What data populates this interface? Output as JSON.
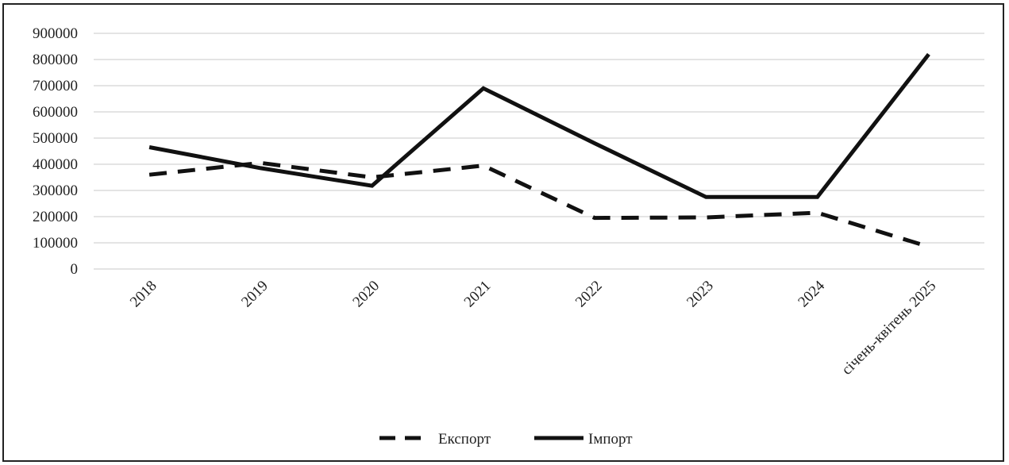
{
  "chart_data": {
    "type": "line",
    "categories": [
      "2018",
      "2019",
      "2020",
      "2021",
      "2022",
      "2023",
      "2024",
      "січень-квітень 2025"
    ],
    "series": [
      {
        "name": "Експорт",
        "style": "dashed",
        "color": "#111111",
        "values": [
          360000,
          405000,
          350000,
          395000,
          195000,
          197000,
          215000,
          85000
        ]
      },
      {
        "name": "Імпорт",
        "style": "solid",
        "color": "#111111",
        "values": [
          465000,
          385000,
          318000,
          690000,
          480000,
          275000,
          275000,
          820000
        ]
      }
    ],
    "yticks": [
      "0",
      "100000",
      "200000",
      "300000",
      "400000",
      "500000",
      "600000",
      "700000",
      "800000",
      "900000"
    ],
    "ylim": [
      0,
      900000
    ],
    "grid": true,
    "legend_position": "bottom",
    "gridline_color": "#c8c8c8"
  }
}
